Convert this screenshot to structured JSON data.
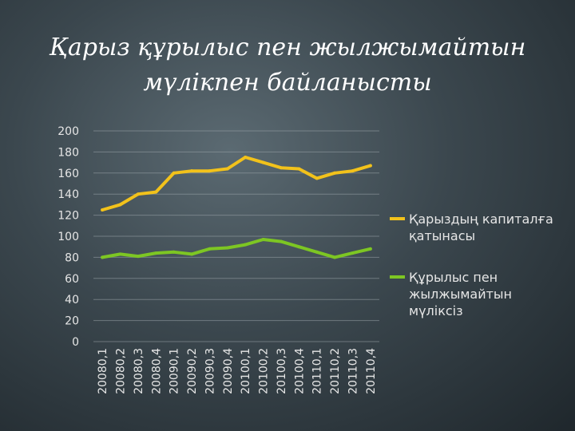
{
  "title": {
    "line1": "Қарыз құрылыс пен жылжымайтын",
    "line2": "мүлікпен байланысты"
  },
  "colors": {
    "series1": "#f2c21b",
    "series2": "#7dc623",
    "grid": "#9aa4a9",
    "text": "#e6e6e6"
  },
  "chart_data": {
    "type": "line",
    "title": "Қарыз құрылыс пен жылжымайтын мүлікпен байланысты",
    "xlabel": "",
    "ylabel": "",
    "ylim": [
      0,
      200
    ],
    "yticks": [
      0,
      20,
      40,
      60,
      80,
      100,
      120,
      140,
      160,
      180,
      200
    ],
    "grid": true,
    "legend_position": "right",
    "categories": [
      "20080,1",
      "20080,2",
      "20080,3",
      "20080,4",
      "20090,1",
      "20090,2",
      "20090,3",
      "20090,4",
      "20100,1",
      "20100,2",
      "20100,3",
      "20100,4",
      "20110,1",
      "20110,2",
      "20110,3",
      "20110,4"
    ],
    "series": [
      {
        "name_line1": "Қарыздың капиталға",
        "name_line2": "қатынасы",
        "values": [
          125,
          130,
          140,
          142,
          160,
          162,
          162,
          164,
          175,
          170,
          165,
          164,
          155,
          160,
          162,
          167
        ]
      },
      {
        "name_line1": "Құрылыс пен",
        "name_line2": "жылжымайтын",
        "name_line3": "мүліксіз",
        "values": [
          80,
          83,
          81,
          84,
          85,
          83,
          88,
          89,
          92,
          97,
          95,
          90,
          85,
          80,
          84,
          88
        ]
      }
    ]
  }
}
